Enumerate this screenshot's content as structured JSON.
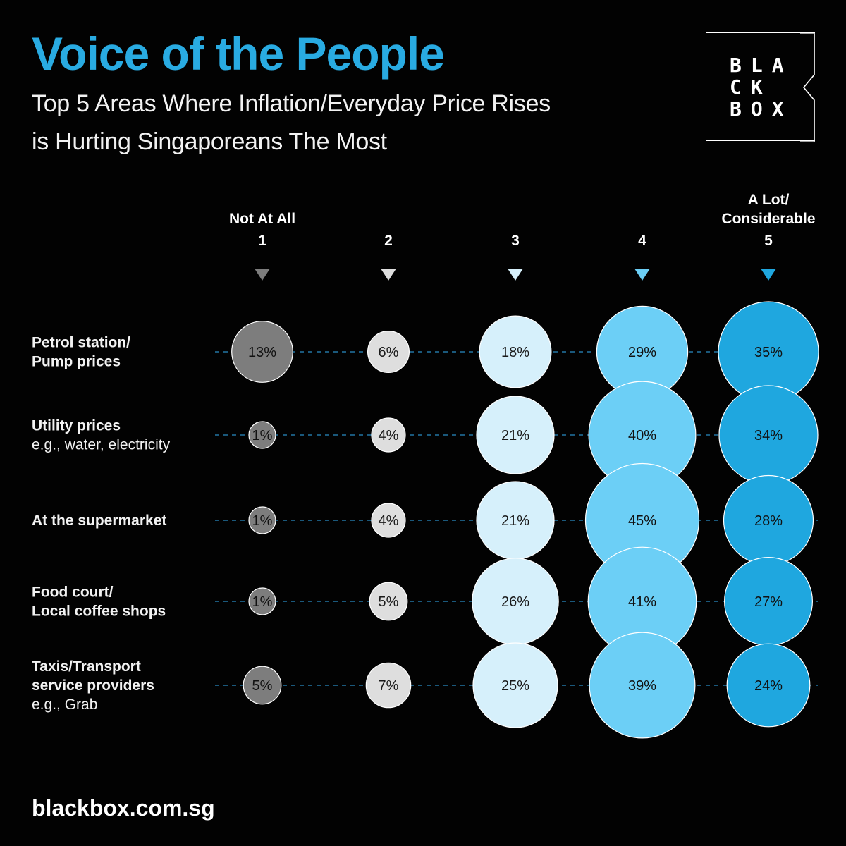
{
  "header": {
    "title": "Voice of the People",
    "subtitle_line1": "Top 5 Areas Where Inflation/Everyday Price Rises",
    "subtitle_line2": "is Hurting Singaporeans The Most"
  },
  "logo": {
    "rows": [
      "BLA",
      "CK",
      "BOX"
    ]
  },
  "footer": {
    "url": "blackbox.com.sg"
  },
  "colors": {
    "title": "#29abe2",
    "scale": [
      "#7d7d7d",
      "#dedede",
      "#d6f0fb",
      "#6ccff6",
      "#1fa7df"
    ],
    "dashes": "#2a8bc4"
  },
  "chart_data": {
    "type": "bubble-matrix",
    "columns": [
      {
        "label_lines": [
          "Not At All"
        ],
        "number": "1"
      },
      {
        "label_lines": [],
        "number": "2"
      },
      {
        "label_lines": [],
        "number": "3"
      },
      {
        "label_lines": [],
        "number": "4"
      },
      {
        "label_lines": [
          "A Lot/",
          "Considerable"
        ],
        "number": "5"
      }
    ],
    "rows": [
      {
        "label_bold": [
          "Petrol station/",
          "Pump prices"
        ],
        "label_sub": [],
        "values": [
          13,
          6,
          18,
          29,
          35
        ]
      },
      {
        "label_bold": [
          "Utility prices"
        ],
        "label_sub": [
          "e.g., water, electricity"
        ],
        "values": [
          1,
          4,
          21,
          40,
          34
        ]
      },
      {
        "label_bold": [
          "At the supermarket"
        ],
        "label_sub": [],
        "values": [
          1,
          4,
          21,
          45,
          28
        ]
      },
      {
        "label_bold": [
          "Food court/",
          "Local coffee shops"
        ],
        "label_sub": [],
        "values": [
          1,
          5,
          26,
          41,
          27
        ]
      },
      {
        "label_bold": [
          "Taxis/Transport",
          "service providers"
        ],
        "label_sub": [
          "e.g., Grab"
        ],
        "values": [
          5,
          7,
          25,
          39,
          24
        ]
      }
    ],
    "value_suffix": "%"
  }
}
